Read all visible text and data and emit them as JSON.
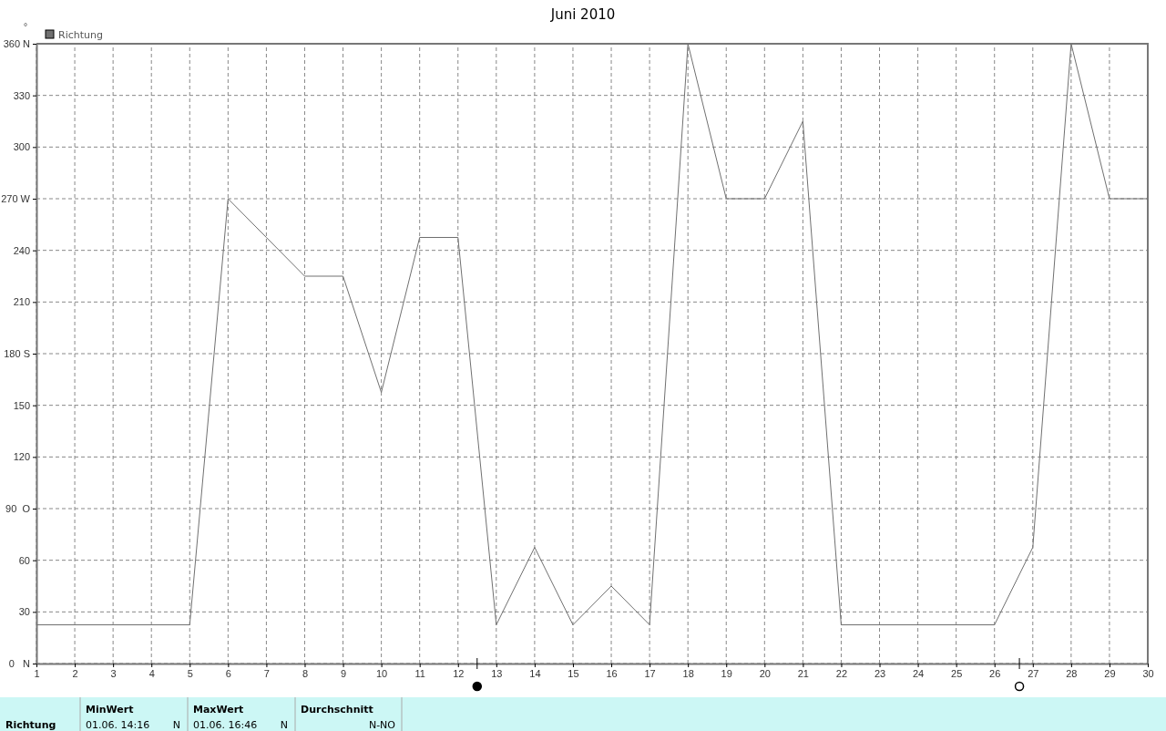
{
  "chart_data": {
    "type": "line",
    "title": "Juni 2010",
    "ylabel": "°",
    "x": [
      1,
      2,
      3,
      4,
      5,
      6,
      7,
      8,
      9,
      10,
      11,
      12,
      13,
      14,
      15,
      16,
      17,
      18,
      19,
      20,
      21,
      22,
      23,
      24,
      25,
      26,
      27,
      28,
      29,
      30
    ],
    "series": [
      {
        "name": "Richtung",
        "color": "#707070",
        "values": [
          22.5,
          22.5,
          22.5,
          22.5,
          22.5,
          270,
          247.5,
          225,
          225,
          157.5,
          247.5,
          247.5,
          22.5,
          67.5,
          22.5,
          45,
          22.5,
          360,
          270,
          270,
          315,
          22.5,
          22.5,
          22.5,
          22.5,
          22.5,
          67.5,
          360,
          270,
          270
        ]
      }
    ],
    "xlim": [
      1,
      30
    ],
    "xticks": [
      1,
      2,
      3,
      4,
      5,
      6,
      7,
      8,
      9,
      10,
      11,
      12,
      13,
      14,
      15,
      16,
      17,
      18,
      19,
      20,
      21,
      22,
      23,
      24,
      25,
      26,
      27,
      28,
      29,
      30
    ],
    "ylim": [
      0,
      360
    ],
    "yticks": [
      {
        "value": 0,
        "label": "0   N"
      },
      30,
      60,
      {
        "value": 90,
        "label": "90  O"
      },
      120,
      150,
      {
        "value": 180,
        "label": "180 S"
      },
      210,
      240,
      {
        "value": 270,
        "label": "270 W"
      },
      300,
      330,
      {
        "value": 360,
        "label": "360 N"
      }
    ],
    "grid": true,
    "legend": "top left",
    "marker": "none",
    "line_style": "solid",
    "annotations": [
      "Richtung",
      "MinWert",
      "01.06.  14:16",
      "N",
      "MaxWert",
      "01.06.  16:46",
      "N",
      "Durchschnitt",
      "N-NO"
    ]
  }
}
